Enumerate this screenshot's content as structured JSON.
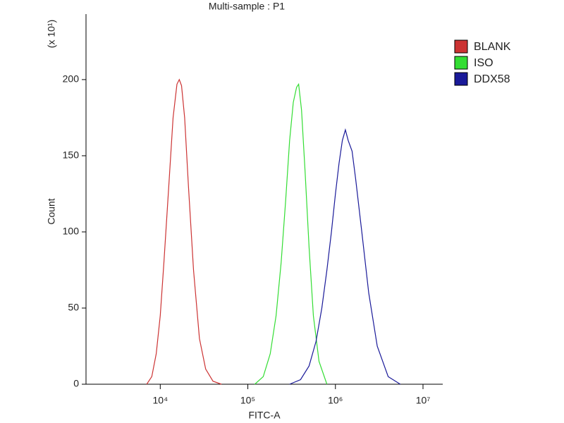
{
  "chart_data": {
    "type": "line",
    "title": "Multi-sample : P1",
    "x_label": "FITC-A",
    "y_label": "Count",
    "y_multiplier": "(x 10¹)",
    "xscale": "log",
    "xlim": [
      1420,
      16800000
    ],
    "xticks": [
      {
        "value": 10000,
        "label": "10⁴"
      },
      {
        "value": 100000,
        "label": "10⁵"
      },
      {
        "value": 1000000,
        "label": "10⁶"
      },
      {
        "value": 10000000,
        "label": "10⁷"
      }
    ],
    "ylim": [
      0,
      243
    ],
    "yticks": [
      0,
      50,
      100,
      150,
      200
    ],
    "legend": "top-right",
    "series": [
      {
        "name": "BLANK",
        "color": "#cc3333",
        "x": [
          7000,
          8000,
          9000,
          10000,
          11000,
          12500,
          14000,
          15500,
          16500,
          17500,
          19000,
          21000,
          24000,
          28000,
          33000,
          40000,
          50000
        ],
        "values": [
          0,
          5,
          20,
          45,
          80,
          130,
          175,
          197,
          200,
          196,
          175,
          130,
          75,
          30,
          10,
          2,
          0
        ]
      },
      {
        "name": "ISO",
        "color": "#33dd33",
        "x": [
          120000,
          150000,
          180000,
          210000,
          240000,
          270000,
          300000,
          330000,
          360000,
          380000,
          410000,
          450000,
          500000,
          560000,
          650000,
          800000
        ],
        "values": [
          0,
          5,
          20,
          45,
          80,
          120,
          160,
          185,
          195,
          197,
          180,
          140,
          90,
          45,
          15,
          0
        ]
      },
      {
        "name": "DDX58",
        "color": "#1a1a99",
        "x": [
          300000,
          400000,
          500000,
          600000,
          700000,
          800000,
          900000,
          1000000,
          1100000,
          1200000,
          1300000,
          1400000,
          1550000,
          1700000,
          2000000,
          2400000,
          3000000,
          4000000,
          5500000
        ],
        "values": [
          0,
          3,
          12,
          28,
          50,
          75,
          100,
          125,
          145,
          160,
          167,
          160,
          153,
          135,
          100,
          60,
          25,
          5,
          0
        ]
      }
    ]
  }
}
